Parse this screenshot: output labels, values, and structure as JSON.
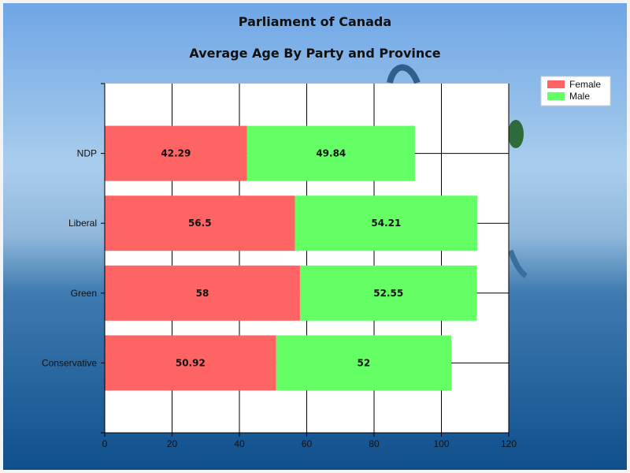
{
  "chart_data": {
    "type": "bar",
    "orientation": "horizontal",
    "stacked": true,
    "title": "Parliament of Canada",
    "subtitle": "Average Age By Party and Province",
    "xlabel": "",
    "ylabel": "",
    "categories": [
      "NDP",
      "Liberal",
      "Green",
      "Conservative"
    ],
    "series": [
      {
        "name": "Female",
        "color": "#ff6464",
        "values": [
          42.29,
          56.5,
          58,
          50.92
        ]
      },
      {
        "name": "Male",
        "color": "#64ff64",
        "values": [
          49.84,
          54.21,
          52.55,
          52
        ]
      }
    ],
    "xlim": [
      0,
      120
    ],
    "xticks": [
      0,
      20,
      40,
      60,
      80,
      100,
      120
    ],
    "grid": true,
    "legend_position": "top-right",
    "data_labels": true
  }
}
